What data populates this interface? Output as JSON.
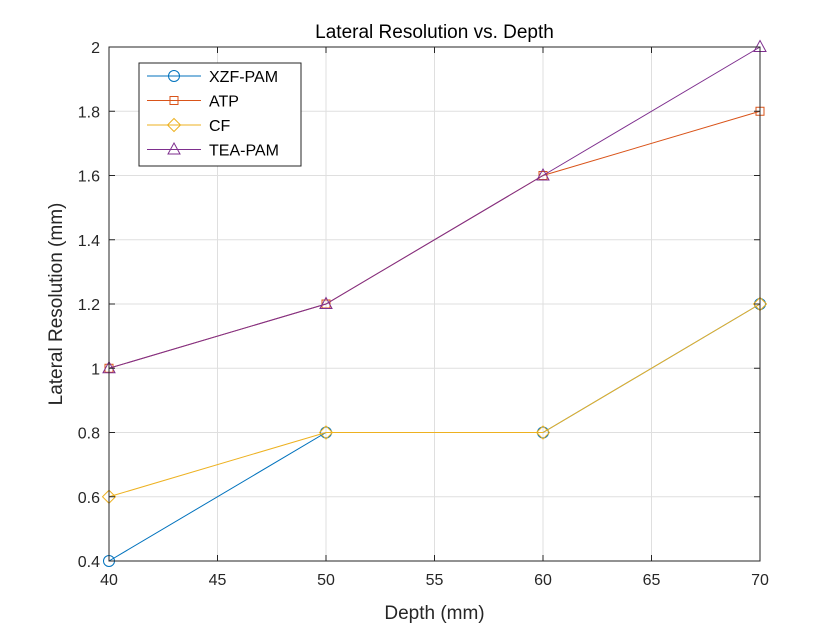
{
  "chart_data": {
    "type": "line",
    "title": "Lateral Resolution vs. Depth",
    "xlabel": "Depth (mm)",
    "ylabel": "Lateral Resolution (mm)",
    "x": [
      40,
      50,
      60,
      70
    ],
    "xlim": [
      40,
      70
    ],
    "ylim": [
      0.4,
      2
    ],
    "xticks": [
      40,
      45,
      50,
      55,
      60,
      65,
      70
    ],
    "yticks": [
      0.4,
      0.6,
      0.8,
      1,
      1.2,
      1.4,
      1.6,
      1.8,
      2
    ],
    "xtick_labels": [
      "40",
      "45",
      "50",
      "55",
      "60",
      "65",
      "70"
    ],
    "ytick_labels": [
      "0.4",
      "0.6",
      "0.8",
      "1",
      "1.2",
      "1.4",
      "1.6",
      "1.8",
      "2"
    ],
    "grid": true,
    "legend_position": "top-left",
    "series": [
      {
        "name": "XZF-PAM",
        "values": [
          0.4,
          0.8,
          0.8,
          1.2
        ],
        "color": "#0072BD",
        "marker": "circle"
      },
      {
        "name": "ATP",
        "values": [
          1.0,
          1.2,
          1.6,
          1.8
        ],
        "color": "#D95319",
        "marker": "square"
      },
      {
        "name": "CF",
        "values": [
          0.6,
          0.8,
          0.8,
          1.2
        ],
        "color": "#EDB120",
        "marker": "diamond"
      },
      {
        "name": "TEA-PAM",
        "values": [
          1.0,
          1.2,
          1.6,
          2.0
        ],
        "color": "#7E2F8E",
        "marker": "triangle"
      }
    ]
  }
}
